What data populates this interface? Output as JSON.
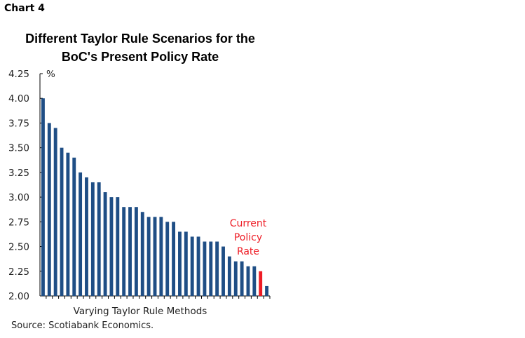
{
  "chart_label": "Chart 4",
  "source": "Source: Scotiabank Economics.",
  "chart_data": {
    "type": "bar",
    "title": "Different Taylor Rule Scenarios for the BoC's Present Policy Rate",
    "title_lines": [
      "Different Taylor Rule Scenarios for the",
      "BoC's Present Policy Rate"
    ],
    "xlabel": "Varying Taylor Rule Methods",
    "ylabel": "%",
    "ylim": [
      2.0,
      4.25
    ],
    "yticks": [
      "2.00",
      "2.25",
      "2.50",
      "2.75",
      "3.00",
      "3.25",
      "3.50",
      "3.75",
      "4.00",
      "4.25"
    ],
    "grid": false,
    "values": [
      4.0,
      3.75,
      3.7,
      3.5,
      3.45,
      3.4,
      3.25,
      3.2,
      3.15,
      3.15,
      3.05,
      3.0,
      3.0,
      2.9,
      2.9,
      2.9,
      2.85,
      2.8,
      2.8,
      2.8,
      2.75,
      2.75,
      2.65,
      2.65,
      2.6,
      2.6,
      2.55,
      2.55,
      2.55,
      2.5,
      2.4,
      2.35,
      2.35,
      2.3,
      2.3,
      2.25,
      2.1
    ],
    "highlight_index": 35,
    "annotation": [
      "Current",
      "Policy",
      "Rate"
    ],
    "colors": {
      "bar": "#1f4e85",
      "highlight": "#ee1c25"
    }
  }
}
